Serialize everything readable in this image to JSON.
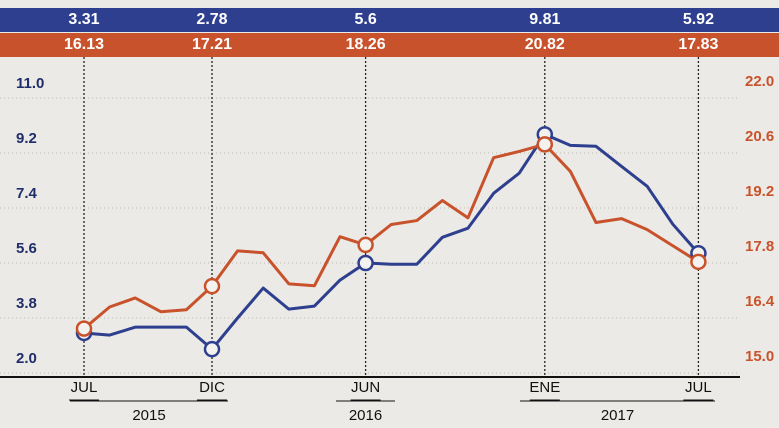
{
  "chart_data": {
    "type": "line",
    "categories": [
      "JUL",
      null,
      null,
      null,
      null,
      "DIC",
      null,
      null,
      null,
      null,
      null,
      "JUN",
      null,
      null,
      null,
      null,
      null,
      null,
      "ENE",
      null,
      null,
      null,
      null,
      null,
      "JUL"
    ],
    "years": [
      "2015",
      "2016",
      "2017"
    ],
    "series": [
      {
        "name": null,
        "color": "#2d3f8e",
        "axis": "y",
        "values": [
          3.31,
          3.24,
          3.5,
          3.5,
          3.5,
          2.78,
          3.8,
          4.78,
          4.09,
          4.19,
          5.04,
          5.6,
          5.56,
          5.56,
          6.44,
          6.74,
          7.88,
          8.54,
          9.81,
          9.45,
          9.42,
          8.76,
          8.11,
          6.87,
          5.92
        ]
      },
      {
        "name": null,
        "color": "#c8522b",
        "axis": "y2",
        "values": [
          16.13,
          16.68,
          16.91,
          16.56,
          16.61,
          17.21,
          18.11,
          18.06,
          17.27,
          17.22,
          18.47,
          18.26,
          18.78,
          18.88,
          19.39,
          18.95,
          20.48,
          20.64,
          20.82,
          20.13,
          18.83,
          18.93,
          18.65,
          18.24,
          17.83
        ]
      }
    ],
    "ylim": [
      2,
      11
    ],
    "yticks": [
      {
        "value": 2,
        "label": "2.0"
      },
      3.8,
      5.6,
      7.4,
      9.2,
      {
        "value": 11,
        "label": "11.0"
      }
    ],
    "y2lim": [
      15,
      22
    ],
    "y2ticks": [
      {
        "value": 15,
        "label": "15.0"
      },
      16.4,
      17.8,
      19.2,
      20.6,
      {
        "value": 22,
        "label": "22.0"
      }
    ],
    "grid": true
  }
}
